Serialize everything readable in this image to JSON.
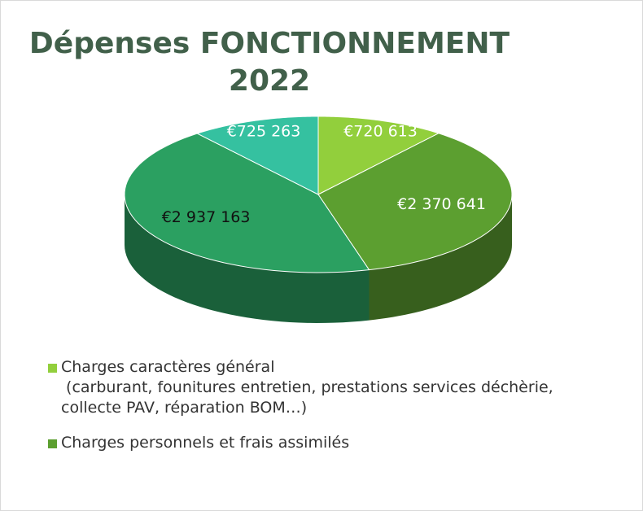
{
  "chart_data": {
    "type": "pie",
    "title": "Dépenses FONCTIONNEMENT 2022",
    "categories": [
      "Charges caractères général\n (carburant, founitures entretien, prestations services déchèrie,\ncollecte PAV, réparation BOM…)",
      "Charges personnels et frais assimilés",
      null,
      null
    ],
    "values": [
      720613,
      2370641,
      2937163,
      725263
    ],
    "value_labels": [
      "€720 613",
      "€2 370 641",
      "€2 937 163",
      "€725 263"
    ],
    "colors": [
      "#92cf3c",
      "#5c9f30",
      "#2ba061",
      "#35c1a0"
    ],
    "legend": "bottom"
  }
}
